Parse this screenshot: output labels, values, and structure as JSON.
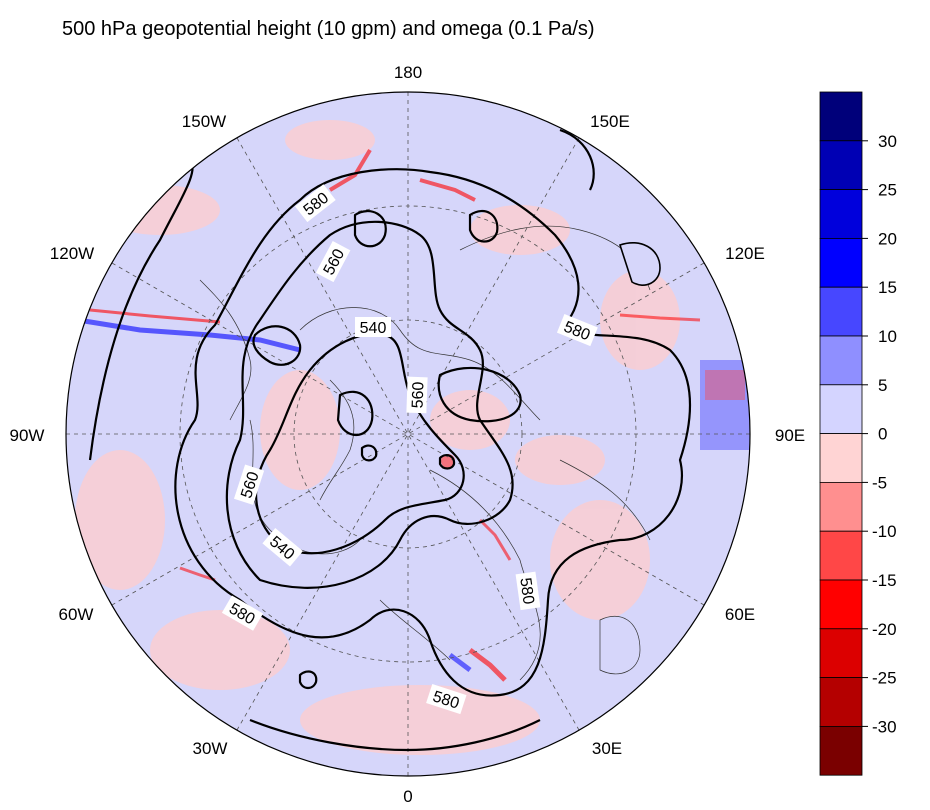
{
  "title": "500 hPa geopotential height (10 gpm) and omega (0.1 Pa/s)",
  "longitude_labels": {
    "lon_180": "180",
    "lon_150E": "150E",
    "lon_120E": "120E",
    "lon_90E": "90E",
    "lon_60E": "60E",
    "lon_30E": "30E",
    "lon_0": "0",
    "lon_30W": "30W",
    "lon_60W": "60W",
    "lon_90W": "90W",
    "lon_120W": "120W",
    "lon_150W": "150W"
  },
  "contour_labels": [
    "580",
    "560",
    "540",
    "560",
    "580",
    "560",
    "540",
    "580",
    "580",
    "580"
  ],
  "colorbar": {
    "tick_labels": [
      "30",
      "25",
      "20",
      "15",
      "10",
      "5",
      "0",
      "-5",
      "-10",
      "-15",
      "-20",
      "-25",
      "-30"
    ],
    "levels": [
      35,
      30,
      25,
      20,
      15,
      10,
      5,
      0,
      -5,
      -10,
      -15,
      -20,
      -25,
      -30,
      -35
    ],
    "colors": [
      "#00007a",
      "#0000b4",
      "#0000dc",
      "#0000ff",
      "#4747ff",
      "#8f8fff",
      "#d4d4ff",
      "#ffd4d4",
      "#ff8f8f",
      "#ff4747",
      "#ff0000",
      "#dc0000",
      "#b40000",
      "#7a0000"
    ]
  },
  "colors": {
    "map_background": "#d6d6fa",
    "positive_speckle": "#ffcccc",
    "contour": "#000000"
  }
}
